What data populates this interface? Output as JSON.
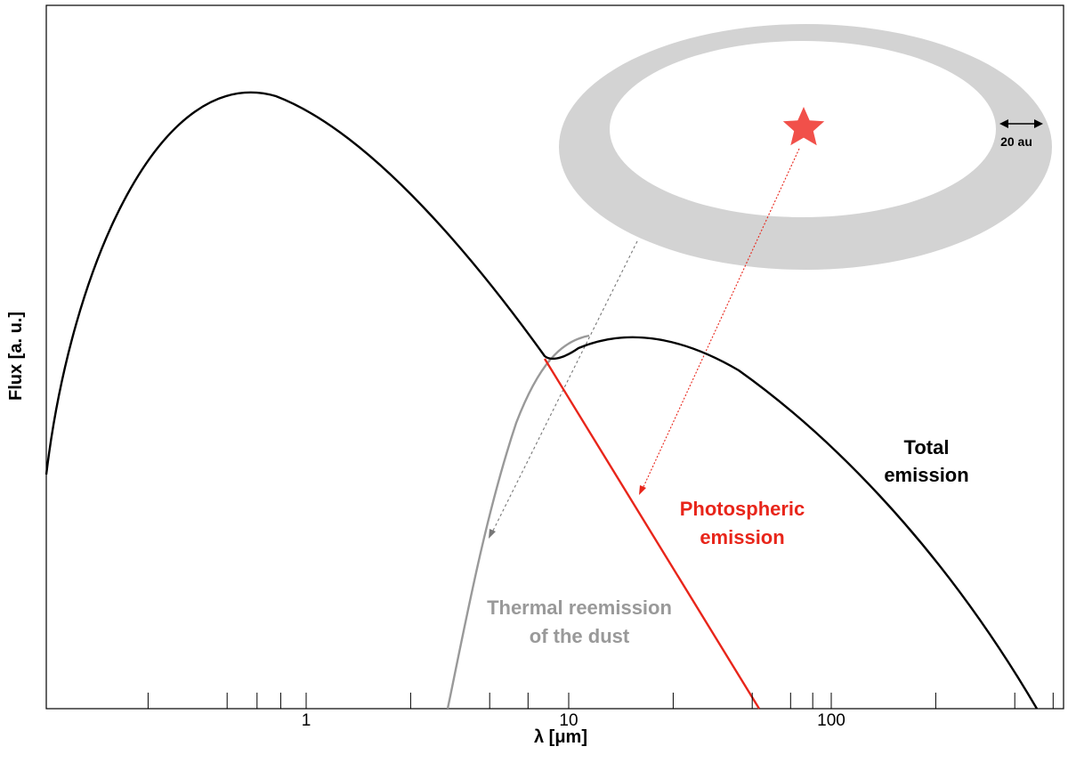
{
  "chart_data": {
    "type": "line",
    "title": "",
    "xlabel": "λ  [μm]",
    "ylabel": "Flux [a. u.]",
    "x_scale": "log",
    "xlim": [
      0.15,
      600
    ],
    "y_scale": "log",
    "grid": false,
    "legend": "none",
    "tick_labels": [
      {
        "value": 1,
        "label": "1"
      },
      {
        "value": 10,
        "label": "10"
      },
      {
        "value": 100,
        "label": "100"
      }
    ],
    "minor_ticks": [
      0.25,
      0.5,
      0.65,
      0.8,
      2.5,
      5,
      7,
      25,
      50,
      70,
      85,
      250,
      500,
      700
    ],
    "series": [
      {
        "name": "Total emission",
        "color": "#000000",
        "description_points": [
          [
            0.15,
            0.3
          ],
          [
            0.3,
            0.83
          ],
          [
            0.65,
            1.0
          ],
          [
            1,
            0.96
          ],
          [
            3,
            0.73
          ],
          [
            8,
            0.49
          ],
          [
            18,
            0.53
          ],
          [
            50,
            0.43
          ],
          [
            200,
            0.22
          ],
          [
            600,
            0.03
          ]
        ]
      },
      {
        "name": "Photospheric emission",
        "color": "#e8251a",
        "description_points": [
          [
            8,
            0.49
          ],
          [
            15,
            0.36
          ],
          [
            30,
            0.19
          ],
          [
            55,
            0.0
          ]
        ]
      },
      {
        "name": "Thermal reemission\nof the dust",
        "color": "#999999",
        "description_points": [
          [
            3.5,
            0.0
          ],
          [
            5,
            0.28
          ],
          [
            8,
            0.46
          ],
          [
            18,
            0.53
          ]
        ]
      }
    ],
    "annotations": {
      "total": [
        "Total",
        "emission"
      ],
      "photospheric": [
        "Photospheric",
        "emission"
      ],
      "thermal": [
        "Thermal reemission",
        "of the dust"
      ],
      "scale_bar": "20 au"
    },
    "colors": {
      "total": "#000000",
      "photospheric": "#e8251a",
      "thermal": "#999999",
      "disk": "#d3d3d3",
      "star": "#f1504a"
    }
  }
}
